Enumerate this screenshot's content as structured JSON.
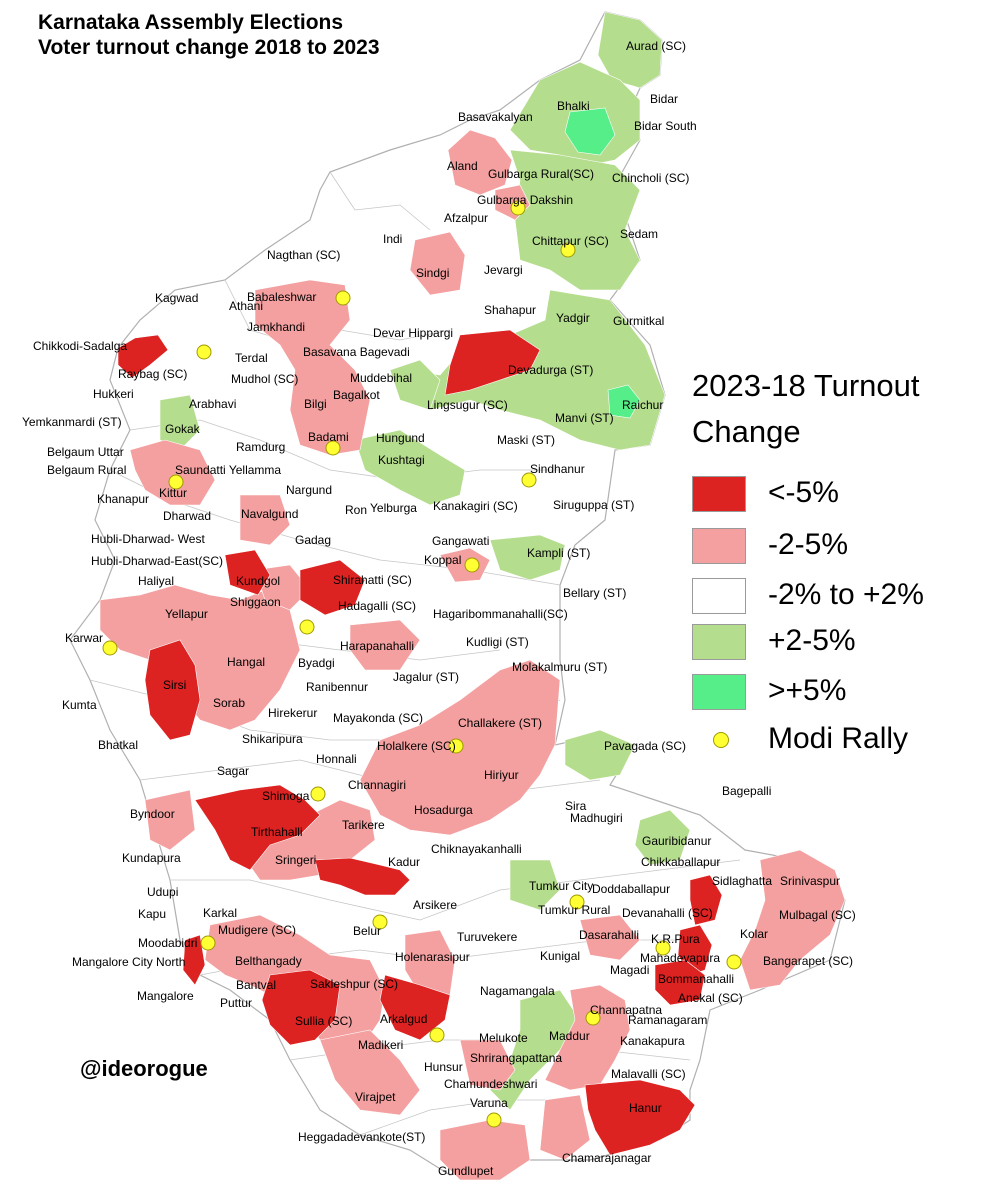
{
  "title_line1": "Karnataka Assembly Elections",
  "title_line2": "Voter turnout change 2018 to 2023",
  "legend": {
    "title_line1": "2023-18 Turnout",
    "title_line2": "Change",
    "items": [
      {
        "label": "<-5%",
        "color": "#dd2222"
      },
      {
        "label": "-2-5%",
        "color": "#f4a0a0"
      },
      {
        "label": "-2% to +2%",
        "color": "#ffffff"
      },
      {
        "label": "+2-5%",
        "color": "#b5dd8e"
      },
      {
        "label": ">+5%",
        "color": "#55ee88"
      }
    ],
    "rally_label": "Modi Rally",
    "rally_color": "#ffff33"
  },
  "handle": "@ideorogue",
  "constituencies": [
    {
      "name": "Aurad (SC)",
      "change": "+2-5%"
    },
    {
      "name": "Bhalki",
      "change": "-2% to +2%"
    },
    {
      "name": "Bidar",
      "change": "+2-5%"
    },
    {
      "name": "Basavakalyan",
      "change": "+2-5%"
    },
    {
      "name": "Bidar South",
      "change": ">+5%"
    },
    {
      "name": "Aland",
      "change": "-2-5%"
    },
    {
      "name": "Gulbarga Rural(SC)",
      "change": "+2-5%"
    },
    {
      "name": "Chincholi (SC)",
      "change": "+2-5%"
    },
    {
      "name": "Gulbarga Dakshin",
      "change": "-2-5%"
    },
    {
      "name": "Afzalpur",
      "change": "-2% to +2%"
    },
    {
      "name": "Indi",
      "change": "-2% to +2%"
    },
    {
      "name": "Chittapur (SC)",
      "change": "+2-5%"
    },
    {
      "name": "Sedam",
      "change": "+2-5%"
    },
    {
      "name": "Nagthan (SC)",
      "change": "-2% to +2%"
    },
    {
      "name": "Jevargi",
      "change": "-2% to +2%"
    },
    {
      "name": "Sindgi",
      "change": "-2-5%"
    },
    {
      "name": "Kagwad",
      "change": "-2% to +2%"
    },
    {
      "name": "Babaleshwar",
      "change": "-2-5%"
    },
    {
      "name": "Athani",
      "change": "-2% to +2%"
    },
    {
      "name": "Shahapur",
      "change": "-2% to +2%"
    },
    {
      "name": "Jamkhandi",
      "change": "-2-5%"
    },
    {
      "name": "Devar Hippargi",
      "change": "-2% to +2%"
    },
    {
      "name": "Yadgir",
      "change": "+2-5%"
    },
    {
      "name": "Gurmitkal",
      "change": "-2% to +2%"
    },
    {
      "name": "Chikkodi-Sadalga",
      "change": "<-5%"
    },
    {
      "name": "Basavana Bagevadi",
      "change": "-2-5%"
    },
    {
      "name": "Terdal",
      "change": "-2% to +2%"
    },
    {
      "name": "Devadurga (ST)",
      "change": "<-5%"
    },
    {
      "name": "Raybag (SC)",
      "change": "-2% to +2%"
    },
    {
      "name": "Muddebihal",
      "change": "+2-5%"
    },
    {
      "name": "Mudhol (SC)",
      "change": "-2% to +2%"
    },
    {
      "name": "Hukkeri",
      "change": "-2% to +2%"
    },
    {
      "name": "Bagalkot",
      "change": "-2-5%"
    },
    {
      "name": "Lingsugur (SC)",
      "change": "+2-5%"
    },
    {
      "name": "Raichur",
      "change": ">+5%"
    },
    {
      "name": "Arabhavi",
      "change": "-2% to +2%"
    },
    {
      "name": "Bilgi",
      "change": "-2-5%"
    },
    {
      "name": "Manvi (ST)",
      "change": "+2-5%"
    },
    {
      "name": "Yemkanmardi (ST)",
      "change": "-2% to +2%"
    },
    {
      "name": "Gokak",
      "change": "+2-5%"
    },
    {
      "name": "Hungund",
      "change": "-2% to +2%"
    },
    {
      "name": "Maski (ST)",
      "change": "+2-5%"
    },
    {
      "name": "Badami",
      "change": "-2-5%"
    },
    {
      "name": "Ramdurg",
      "change": "-2% to +2%"
    },
    {
      "name": "Belgaum Uttar",
      "change": "-2% to +2%"
    },
    {
      "name": "Kushtagi",
      "change": "+2-5%"
    },
    {
      "name": "Belgaum Rural",
      "change": "-2-5%"
    },
    {
      "name": "Saundatti Yellamma",
      "change": "-2-5%"
    },
    {
      "name": "Sindhanur",
      "change": "-2% to +2%"
    },
    {
      "name": "Kittur",
      "change": "-2-5%"
    },
    {
      "name": "Khanapur",
      "change": "-2% to +2%"
    },
    {
      "name": "Nargund",
      "change": "-2% to +2%"
    },
    {
      "name": "Ron",
      "change": "-2% to +2%"
    },
    {
      "name": "Yelburga",
      "change": "-2% to +2%"
    },
    {
      "name": "Kanakagiri (SC)",
      "change": "-2% to +2%"
    },
    {
      "name": "Siruguppa (ST)",
      "change": "-2% to +2%"
    },
    {
      "name": "Dharwad",
      "change": "-2% to +2%"
    },
    {
      "name": "Navalgund",
      "change": "-2-5%"
    },
    {
      "name": "Hubli-Dharwad- West",
      "change": "-2% to +2%"
    },
    {
      "name": "Gangawati",
      "change": "-2% to +2%"
    },
    {
      "name": "Gadag",
      "change": "-2% to +2%"
    },
    {
      "name": "Kampli (ST)",
      "change": "+2-5%"
    },
    {
      "name": "Hubli-Dharwad-East(SC)",
      "change": "-2% to +2%"
    },
    {
      "name": "Koppal",
      "change": "-2-5%"
    },
    {
      "name": "Haliyal",
      "change": "-2% to +2%"
    },
    {
      "name": "Kundgol",
      "change": "<-5%"
    },
    {
      "name": "Shirahatti (SC)",
      "change": "<-5%"
    },
    {
      "name": "Bellary (ST)",
      "change": "-2% to +2%"
    },
    {
      "name": "Shiggaon",
      "change": "-2-5%"
    },
    {
      "name": "Hadagalli (SC)",
      "change": "-2% to +2%"
    },
    {
      "name": "Yellapur",
      "change": "-2-5%"
    },
    {
      "name": "Hagaribommanahalli(SC)",
      "change": "-2% to +2%"
    },
    {
      "name": "Karwar",
      "change": "-2-5%"
    },
    {
      "name": "Kudligi (ST)",
      "change": "-2% to +2%"
    },
    {
      "name": "Harapanahalli",
      "change": "-2-5%"
    },
    {
      "name": "Hangal",
      "change": "-2-5%"
    },
    {
      "name": "Byadgi",
      "change": "-2% to +2%"
    },
    {
      "name": "Molakalmuru (ST)",
      "change": "-2-5%"
    },
    {
      "name": "Sirsi",
      "change": "<-5%"
    },
    {
      "name": "Jagalur (ST)",
      "change": "-2% to +2%"
    },
    {
      "name": "Ranibennur",
      "change": "-2% to +2%"
    },
    {
      "name": "Kumta",
      "change": "-2% to +2%"
    },
    {
      "name": "Sorab",
      "change": "-2-5%"
    },
    {
      "name": "Hirekerur",
      "change": "-2% to +2%"
    },
    {
      "name": "Mayakonda (SC)",
      "change": "-2% to +2%"
    },
    {
      "name": "Challakere (ST)",
      "change": "-2-5%"
    },
    {
      "name": "Bhatkal",
      "change": "-2% to +2%"
    },
    {
      "name": "Shikaripura",
      "change": "-2% to +2%"
    },
    {
      "name": "Pavagada (SC)",
      "change": "+2-5%"
    },
    {
      "name": "Honnali",
      "change": "-2% to +2%"
    },
    {
      "name": "Holalkere (SC)",
      "change": "-2-5%"
    },
    {
      "name": "Sagar",
      "change": "-2% to +2%"
    },
    {
      "name": "Hiriyur",
      "change": "-2-5%"
    },
    {
      "name": "Channagiri",
      "change": "-2-5%"
    },
    {
      "name": "Shimoga",
      "change": "-2% to +2%"
    },
    {
      "name": "Byndoor",
      "change": "-2-5%"
    },
    {
      "name": "Hosadurga",
      "change": "-2-5%"
    },
    {
      "name": "Sira",
      "change": "-2% to +2%"
    },
    {
      "name": "Bagepalli",
      "change": "-2% to +2%"
    },
    {
      "name": "Tirthahalli",
      "change": "<-5%"
    },
    {
      "name": "Tarikere",
      "change": "-2-5%"
    },
    {
      "name": "Madhugiri",
      "change": "-2% to +2%"
    },
    {
      "name": "Gauribidanur",
      "change": "+2-5%"
    },
    {
      "name": "Kundapura",
      "change": "-2% to +2%"
    },
    {
      "name": "Sringeri",
      "change": "-2-5%"
    },
    {
      "name": "Chiknayakanhalli",
      "change": "-2% to +2%"
    },
    {
      "name": "Chikkaballapur",
      "change": "+2-5%"
    },
    {
      "name": "Kadur",
      "change": "<-5%"
    },
    {
      "name": "Sidlaghatta",
      "change": "-2% to +2%"
    },
    {
      "name": "Srinivaspur",
      "change": "-2-5%"
    },
    {
      "name": "Udupi",
      "change": "-2% to +2%"
    },
    {
      "name": "Tumkur City",
      "change": "+2-5%"
    },
    {
      "name": "Doddaballapur",
      "change": "-2% to +2%"
    },
    {
      "name": "Kapu",
      "change": "-2% to +2%"
    },
    {
      "name": "Karkal",
      "change": "-2% to +2%"
    },
    {
      "name": "Arsikere",
      "change": "-2% to +2%"
    },
    {
      "name": "Tumkur Rural",
      "change": "-2% to +2%"
    },
    {
      "name": "Devanahalli (SC)",
      "change": "<-5%"
    },
    {
      "name": "Mulbagal (SC)",
      "change": "-2-5%"
    },
    {
      "name": "Belur",
      "change": "-2% to +2%"
    },
    {
      "name": "Mudigere (SC)",
      "change": "-2-5%"
    },
    {
      "name": "Turuvekere",
      "change": "-2% to +2%"
    },
    {
      "name": "Dasarahalli",
      "change": "-2-5%"
    },
    {
      "name": "K.R.Pura",
      "change": "<-5%"
    },
    {
      "name": "Kolar",
      "change": "-2% to +2%"
    },
    {
      "name": "Moodabidri",
      "change": "-2% to +2%"
    },
    {
      "name": "Kunigal",
      "change": "-2% to +2%"
    },
    {
      "name": "Mahadevapura",
      "change": "<-5%"
    },
    {
      "name": "Holenarasipur",
      "change": "-2-5%"
    },
    {
      "name": "Belthangady",
      "change": "-2-5%"
    },
    {
      "name": "Magadi",
      "change": "-2% to +2%"
    },
    {
      "name": "Mangalore City North",
      "change": "<-5%"
    },
    {
      "name": "Bangarapet (SC)",
      "change": "-2-5%"
    },
    {
      "name": "Bommanahalli",
      "change": "<-5%"
    },
    {
      "name": "Bantval",
      "change": "-2-5%"
    },
    {
      "name": "Sakleshpur (SC)",
      "change": "-2-5%"
    },
    {
      "name": "Nagamangala",
      "change": "-2% to +2%"
    },
    {
      "name": "Anekal (SC)",
      "change": "-2% to +2%"
    },
    {
      "name": "Mangalore",
      "change": "-2% to +2%"
    },
    {
      "name": "Puttur",
      "change": "-2-5%"
    },
    {
      "name": "Channapatna",
      "change": "-2-5%"
    },
    {
      "name": "Ramanagaram",
      "change": "-2% to +2%"
    },
    {
      "name": "Arkalgud",
      "change": "<-5%"
    },
    {
      "name": "Maddur",
      "change": "+2-5%"
    },
    {
      "name": "Sullia (SC)",
      "change": "<-5%"
    },
    {
      "name": "Kanakapura",
      "change": "-2% to +2%"
    },
    {
      "name": "Melukote",
      "change": "-2% to +2%"
    },
    {
      "name": "Madikeri",
      "change": "-2-5%"
    },
    {
      "name": "Shrirangapattana",
      "change": "-2-5%"
    },
    {
      "name": "Hunsur",
      "change": "-2% to +2%"
    },
    {
      "name": "Malavalli (SC)",
      "change": "-2-5%"
    },
    {
      "name": "Chamundeshwari",
      "change": "-2% to +2%"
    },
    {
      "name": "Hanur",
      "change": "<-5%"
    },
    {
      "name": "Varuna",
      "change": "+2-5%"
    },
    {
      "name": "Virajpet",
      "change": "-2% to +2%"
    },
    {
      "name": "Heggadadevankote(ST)",
      "change": "-2% to +2%"
    },
    {
      "name": "Chamarajanagar",
      "change": "-2-5%"
    },
    {
      "name": "Gundlupet",
      "change": "-2-5%"
    }
  ]
}
